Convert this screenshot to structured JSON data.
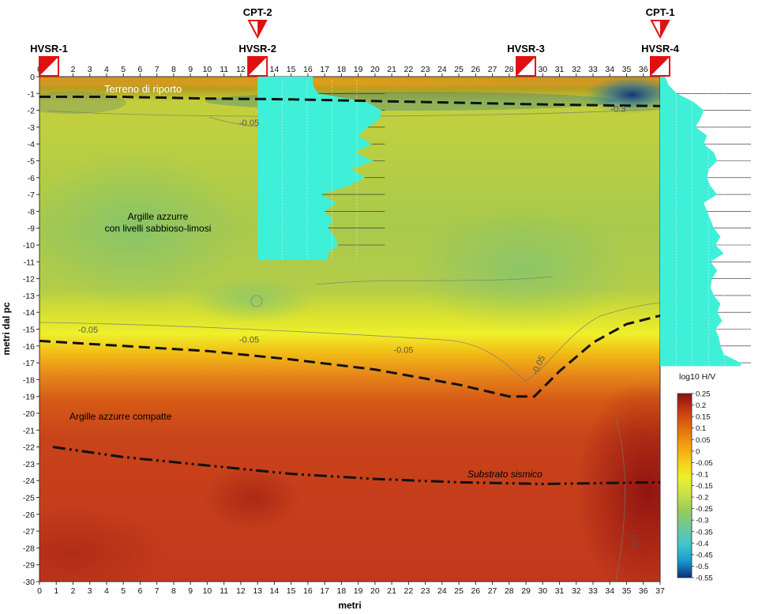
{
  "chart_data": {
    "type": "heatmap",
    "xlabel": "metri",
    "ylabel": "metri dal pc",
    "xlim": [
      0,
      37
    ],
    "ylim": [
      -30,
      0
    ],
    "x_ticks": [
      0,
      1,
      2,
      3,
      4,
      5,
      6,
      7,
      8,
      9,
      10,
      11,
      12,
      13,
      14,
      15,
      16,
      17,
      18,
      19,
      20,
      21,
      22,
      23,
      24,
      25,
      26,
      27,
      28,
      29,
      30,
      31,
      32,
      33,
      34,
      35,
      36,
      37
    ],
    "y_ticks": [
      0,
      -1,
      -2,
      -3,
      -4,
      -5,
      -6,
      -7,
      -8,
      -9,
      -10,
      -11,
      -12,
      -13,
      -14,
      -15,
      -16,
      -17,
      -18,
      -19,
      -20,
      -21,
      -22,
      -23,
      -24,
      -25,
      -26,
      -27,
      -28,
      -29,
      -30
    ],
    "colorbar": {
      "title": "log10 H/V",
      "min": -0.55,
      "max": 0.25,
      "ticks": [
        "0.25",
        "0.2",
        "0.15",
        "0.1",
        "0.05",
        "0",
        "-0.05",
        "-0.1",
        "-0.15",
        "-0.2",
        "-0.25",
        "-0.3",
        "-0.35",
        "-0.4",
        "-0.45",
        "-0.5",
        "-0.55"
      ],
      "colors": [
        "#8b0f0f",
        "#c63a12",
        "#e06a10",
        "#f29a10",
        "#f7c81a",
        "#eef02a",
        "#c9e04a",
        "#97cc5a",
        "#6ec79a",
        "#42c5c8",
        "#1a9ad0",
        "#0a2f7a"
      ]
    },
    "markers": [
      {
        "name": "HVSR-1",
        "x": 0.5,
        "type": "hvsr"
      },
      {
        "name": "HVSR-2",
        "x": 13,
        "type": "hvsr"
      },
      {
        "name": "HVSR-3",
        "x": 29,
        "type": "hvsr"
      },
      {
        "name": "HVSR-4",
        "x": 37,
        "type": "hvsr"
      },
      {
        "name": "CPT-2",
        "x": 13,
        "type": "cpt"
      },
      {
        "name": "CPT-1",
        "x": 37,
        "type": "cpt"
      }
    ],
    "contour_labels": [
      {
        "text": "-0.05",
        "x": 12.5,
        "y": -2.9
      },
      {
        "text": "-0.3",
        "x": 34.5,
        "y": -2.1
      },
      {
        "text": "-0.05",
        "x": 2.9,
        "y": -15.2
      },
      {
        "text": "-0.05",
        "x": 12.5,
        "y": -15.8
      },
      {
        "text": "-0.05",
        "x": 21.7,
        "y": -16.4
      },
      {
        "text": "-0.05",
        "x": 29.9,
        "y": -17.2
      },
      {
        "text": "0.2",
        "x": 35.3,
        "y": -27.6
      }
    ],
    "boundaries": [
      {
        "style": "dashed",
        "points": [
          [
            0,
            -1.2
          ],
          [
            5,
            -1.2
          ],
          [
            10,
            -1.3
          ],
          [
            15,
            -1.35
          ],
          [
            20,
            -1.45
          ],
          [
            25,
            -1.55
          ],
          [
            30,
            -1.65
          ],
          [
            37,
            -1.75
          ]
        ]
      },
      {
        "style": "dashed",
        "points": [
          [
            0,
            -15.7
          ],
          [
            5,
            -16.0
          ],
          [
            10,
            -16.3
          ],
          [
            15,
            -16.8
          ],
          [
            20,
            -17.4
          ],
          [
            25,
            -18.3
          ],
          [
            28,
            -19.0
          ],
          [
            29.5,
            -19.0
          ],
          [
            31,
            -17.5
          ],
          [
            33,
            -15.8
          ],
          [
            35,
            -14.7
          ],
          [
            37,
            -14.2
          ]
        ]
      },
      {
        "style": "dashdot",
        "points": [
          [
            0.8,
            -22.0
          ],
          [
            5,
            -22.6
          ],
          [
            10,
            -23.1
          ],
          [
            15,
            -23.6
          ],
          [
            20,
            -23.9
          ],
          [
            25,
            -24.1
          ],
          [
            30,
            -24.2
          ],
          [
            37,
            -24.1
          ]
        ]
      }
    ],
    "hvsr_profiles": [
      {
        "name": "HVSR-2",
        "x0": 13,
        "depth_max": -10.9,
        "depths": [
          0,
          -0.5,
          -1,
          -1.5,
          -2,
          -2.5,
          -3,
          -3.5,
          -4,
          -4.5,
          -5,
          -5.5,
          -6,
          -6.5,
          -7,
          -7.5,
          -8,
          -8.5,
          -9,
          -9.5,
          -10,
          -10.5,
          -10.9
        ],
        "width_m": [
          3.3,
          3.3,
          3.6,
          6.5,
          7.4,
          7.3,
          6.6,
          6.0,
          6.8,
          5.8,
          6.9,
          5.6,
          6.4,
          5.4,
          3.8,
          4.7,
          4.0,
          4.5,
          4.2,
          4.6,
          4.8,
          4.2,
          4.2
        ]
      },
      {
        "name": "HVSR-4",
        "x0": 37,
        "depth_max": -17.2,
        "depths": [
          0,
          -0.5,
          -1,
          -1.5,
          -2,
          -2.5,
          -3,
          -3.5,
          -4,
          -4.5,
          -5,
          -5.5,
          -6,
          -6.5,
          -7,
          -7.5,
          -8,
          -8.5,
          -9,
          -9.5,
          -10,
          -10.5,
          -11,
          -11.5,
          -12,
          -12.5,
          -13,
          -13.5,
          -14,
          -14.5,
          -15,
          -15.5,
          -16,
          -16.5,
          -17,
          -17.2
        ],
        "width_m": [
          0.3,
          0.5,
          1.0,
          2.0,
          2.6,
          2.4,
          2.1,
          2.8,
          2.6,
          3.2,
          3.4,
          2.9,
          2.8,
          3.0,
          3.4,
          2.6,
          2.8,
          3.0,
          3.2,
          3.6,
          3.3,
          3.8,
          3.0,
          3.4,
          3.1,
          3.0,
          3.2,
          3.6,
          3.4,
          3.7,
          3.3,
          3.5,
          3.6,
          3.8,
          4.8,
          4.8
        ]
      }
    ]
  },
  "annotations": {
    "terreno": "Terreno di riporto",
    "argille_line1": "Argille azzurre",
    "argille_line2": "con livelli sabbioso-limosi",
    "argille_compatte": "Argille azzurre compatte",
    "substrato": "Substrato sismico"
  }
}
